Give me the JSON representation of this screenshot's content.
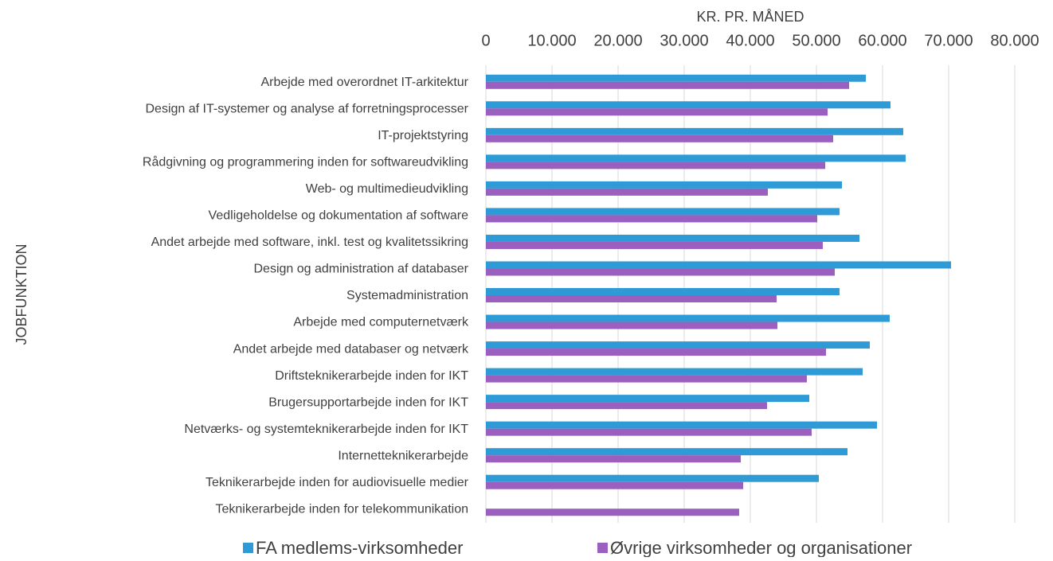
{
  "chart_data": {
    "type": "barh",
    "xlabel": "KR. PR. MÅNED",
    "ylabel": "JOBFUNKTION",
    "categories": [
      "Arbejde med overordnet IT-arkitektur",
      "Design af IT-systemer og analyse af forretningsprocesser",
      "IT-projektstyring",
      "Rådgivning og programmering inden for softwareudvikling",
      "Web- og multimedieudvikling",
      "Vedligeholdelse og dokumentation af software",
      "Andet arbejde med software, inkl. test og kvalitetssikring",
      "Design og administration af databaser",
      "Systemadministration",
      "Arbejde med computernetværk",
      "Andet arbejde med databaser og netværk",
      "Driftsteknikerarbejde inden for IKT",
      "Brugersupportarbejde inden for IKT",
      "Netværks- og systemteknikerarbejde inden for IKT",
      "Internetteknikerarbejde",
      "Teknikerarbejde inden for audiovisuelle medier",
      "Teknikerarbejde inden for telekommunikation"
    ],
    "series": [
      {
        "name": "FA medlems-virksomheder",
        "color": "#2e9bd6",
        "values": [
          57470,
          61200,
          63130,
          63490,
          53860,
          53490,
          56510,
          70360,
          53490,
          61080,
          58070,
          56990,
          48920,
          59160,
          54700,
          50360,
          null
        ]
      },
      {
        "name": "Øvrige virksomheder og organisationer",
        "color": "#9b5fc0",
        "values": [
          54940,
          51690,
          52530,
          51330,
          42650,
          50120,
          50960,
          52770,
          43980,
          44100,
          51450,
          48550,
          42530,
          49280,
          38550,
          38920,
          38310
        ]
      }
    ],
    "xlim": [
      0,
      80000
    ],
    "xticks": [
      0,
      {
        "value": 10000,
        "label": "10.000"
      },
      {
        "value": 20000,
        "label": "20.000"
      },
      {
        "value": 30000,
        "label": "30.000"
      },
      {
        "value": 40000,
        "label": "40.000"
      },
      {
        "value": 50000,
        "label": "50.000"
      },
      {
        "value": 60000,
        "label": "60.000"
      },
      {
        "value": 70000,
        "label": "70.000"
      },
      {
        "value": 80000,
        "label": "80.000"
      }
    ],
    "grid": true,
    "legend": "bottom"
  }
}
